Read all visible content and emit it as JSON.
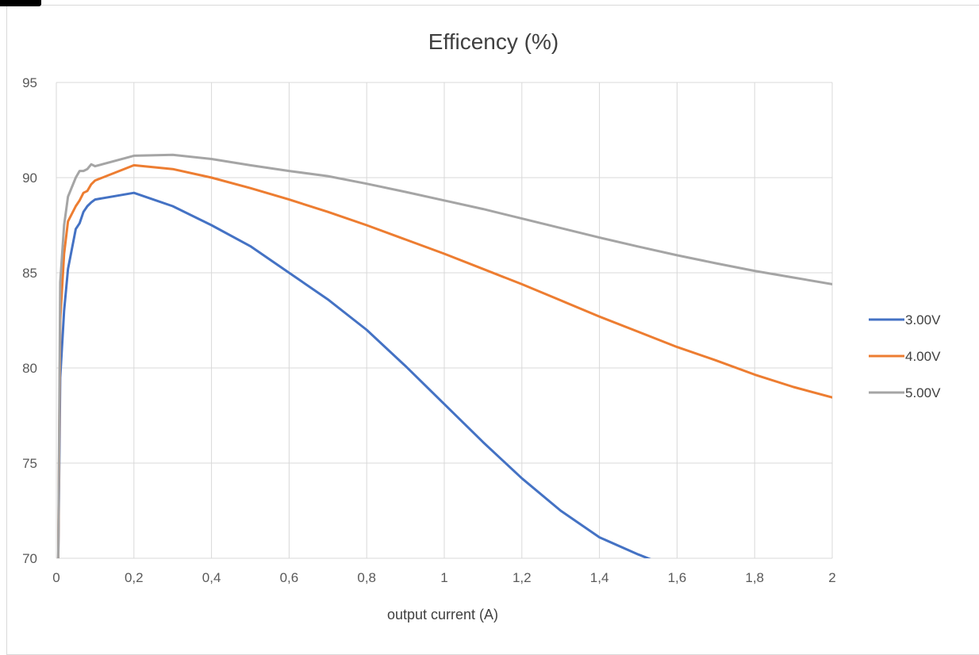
{
  "chart_data": {
    "type": "line",
    "title": "Efficency (%)",
    "xlabel": "output current (A)",
    "ylabel": "",
    "xlim": [
      0,
      2
    ],
    "ylim": [
      70,
      95
    ],
    "x_ticks": [
      "0",
      "0,2",
      "0,4",
      "0,6",
      "0,8",
      "1",
      "1,2",
      "1,4",
      "1,6",
      "1,8",
      "2"
    ],
    "y_ticks": [
      "70",
      "75",
      "80",
      "85",
      "90",
      "95"
    ],
    "grid": true,
    "legend_position": "right",
    "series": [
      {
        "name": "3.00V",
        "color": "#4472c4",
        "x": [
          0.01,
          0.02,
          0.03,
          0.05,
          0.06,
          0.07,
          0.08,
          0.09,
          0.1,
          0.2,
          0.3,
          0.4,
          0.5,
          0.6,
          0.7,
          0.8,
          0.9,
          1.0,
          1.1,
          1.2,
          1.3,
          1.4,
          1.5,
          1.55
        ],
        "y": [
          79.5,
          83.0,
          85.2,
          87.3,
          87.6,
          88.2,
          88.5,
          88.7,
          88.85,
          89.2,
          88.5,
          87.5,
          86.4,
          85.0,
          83.6,
          82.0,
          80.1,
          78.1,
          76.1,
          74.2,
          72.5,
          71.1,
          70.2,
          69.8
        ]
      },
      {
        "name": "4.00V",
        "color": "#ed7d31",
        "x": [
          0.01,
          0.02,
          0.03,
          0.05,
          0.06,
          0.07,
          0.08,
          0.09,
          0.1,
          0.2,
          0.3,
          0.4,
          0.5,
          0.6,
          0.7,
          0.8,
          0.9,
          1.0,
          1.1,
          1.2,
          1.3,
          1.4,
          1.5,
          1.6,
          1.7,
          1.8,
          1.9,
          2.0
        ],
        "y": [
          82.5,
          86.0,
          87.7,
          88.5,
          88.8,
          89.2,
          89.3,
          89.65,
          89.85,
          90.65,
          90.45,
          90.0,
          89.45,
          88.85,
          88.2,
          87.5,
          86.75,
          86.0,
          85.2,
          84.4,
          83.55,
          82.7,
          81.9,
          81.1,
          80.4,
          79.65,
          79.0,
          78.45
        ]
      },
      {
        "name": "5.00V",
        "color": "#a5a5a5",
        "x": [
          0.01,
          0.02,
          0.03,
          0.05,
          0.06,
          0.07,
          0.08,
          0.09,
          0.1,
          0.2,
          0.3,
          0.4,
          0.5,
          0.6,
          0.7,
          0.8,
          0.9,
          1.0,
          1.1,
          1.2,
          1.3,
          1.4,
          1.5,
          1.6,
          1.7,
          1.8,
          1.9,
          2.0
        ],
        "y": [
          84.5,
          87.5,
          89.0,
          90.0,
          90.35,
          90.35,
          90.45,
          90.7,
          90.6,
          91.15,
          91.2,
          90.98,
          90.65,
          90.35,
          90.08,
          89.68,
          89.25,
          88.8,
          88.35,
          87.85,
          87.35,
          86.85,
          86.38,
          85.92,
          85.5,
          85.1,
          84.75,
          84.4
        ]
      }
    ]
  }
}
